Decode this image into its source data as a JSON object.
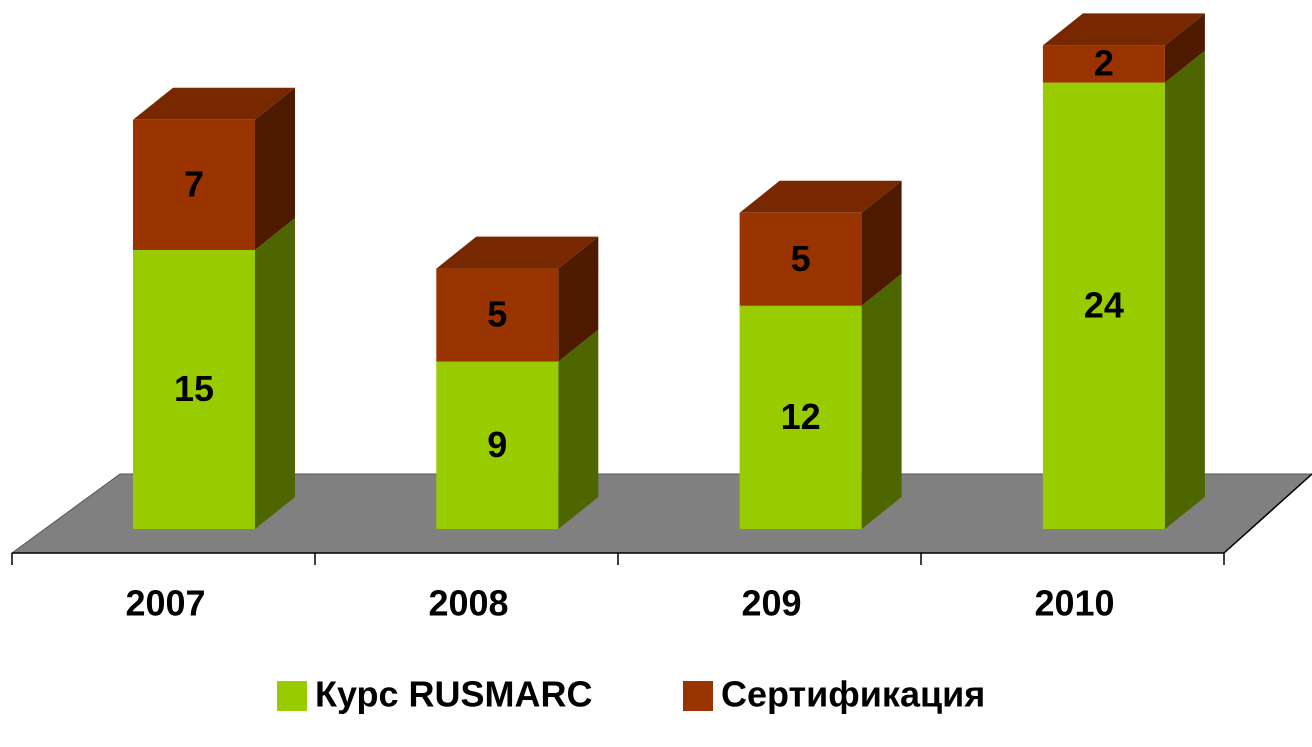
{
  "chart_data": {
    "type": "bar3d_stacked",
    "categories": [
      "2007",
      "2008",
      "209",
      "2010"
    ],
    "series": [
      {
        "name": "Курс RUSMARC",
        "color": "#99cc00",
        "values": [
          15,
          9,
          12,
          24
        ]
      },
      {
        "name": "Сертификация",
        "color": "#993300",
        "values": [
          7,
          5,
          5,
          2
        ]
      }
    ],
    "legend": "bottom"
  }
}
